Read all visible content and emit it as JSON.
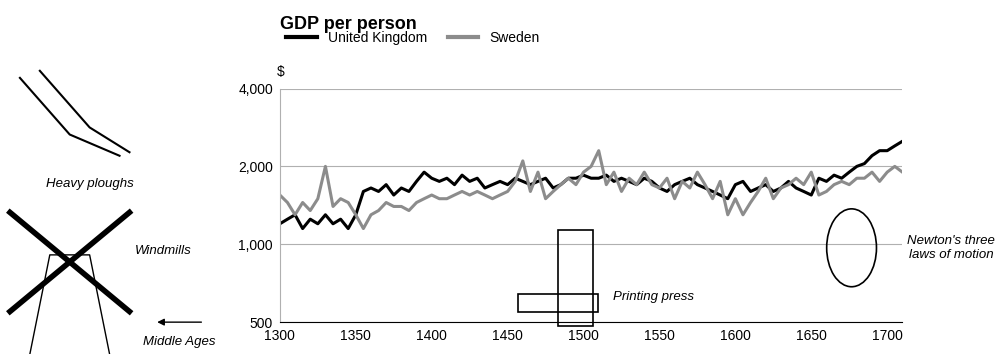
{
  "chart_data": {
    "type": "line",
    "title": "GDP per person",
    "y_label": "$",
    "x": [
      1300,
      1305,
      1310,
      1315,
      1320,
      1325,
      1330,
      1335,
      1340,
      1345,
      1350,
      1355,
      1360,
      1365,
      1370,
      1375,
      1380,
      1385,
      1390,
      1395,
      1400,
      1405,
      1410,
      1415,
      1420,
      1425,
      1430,
      1435,
      1440,
      1445,
      1450,
      1455,
      1460,
      1465,
      1470,
      1475,
      1480,
      1485,
      1490,
      1495,
      1500,
      1505,
      1510,
      1515,
      1520,
      1525,
      1530,
      1535,
      1540,
      1545,
      1550,
      1555,
      1560,
      1565,
      1570,
      1575,
      1580,
      1585,
      1590,
      1595,
      1600,
      1605,
      1610,
      1615,
      1620,
      1625,
      1630,
      1635,
      1640,
      1645,
      1650,
      1655,
      1660,
      1665,
      1670,
      1675,
      1680,
      1685,
      1690,
      1695,
      1700,
      1705,
      1710
    ],
    "series": [
      {
        "name": "United Kingdom",
        "color": "#000000",
        "line_style": "solid",
        "values": [
          1200,
          1250,
          1300,
          1150,
          1250,
          1200,
          1300,
          1200,
          1250,
          1150,
          1300,
          1600,
          1650,
          1600,
          1700,
          1550,
          1650,
          1600,
          1750,
          1900,
          1800,
          1750,
          1800,
          1700,
          1850,
          1750,
          1800,
          1650,
          1700,
          1750,
          1700,
          1800,
          1750,
          1700,
          1750,
          1800,
          1650,
          1700,
          1800,
          1800,
          1850,
          1800,
          1800,
          1850,
          1750,
          1800,
          1750,
          1700,
          1800,
          1750,
          1650,
          1600,
          1700,
          1750,
          1800,
          1700,
          1650,
          1600,
          1550,
          1500,
          1700,
          1750,
          1600,
          1650,
          1700,
          1600,
          1650,
          1750,
          1650,
          1600,
          1550,
          1800,
          1750,
          1850,
          1800,
          1900,
          2000,
          2050,
          2200,
          2300,
          2300,
          2400,
          2500
        ]
      },
      {
        "name": "Sweden",
        "color": "#8c8c8c",
        "line_style": "solid",
        "values": [
          1550,
          1450,
          1300,
          1450,
          1350,
          1500,
          2000,
          1400,
          1500,
          1450,
          1300,
          1150,
          1300,
          1350,
          1450,
          1400,
          1400,
          1350,
          1450,
          1500,
          1550,
          1500,
          1500,
          1550,
          1600,
          1550,
          1600,
          1550,
          1500,
          1550,
          1600,
          1750,
          2100,
          1600,
          1900,
          1500,
          1600,
          1700,
          1800,
          1700,
          1900,
          2000,
          2300,
          1700,
          1900,
          1600,
          1800,
          1700,
          1900,
          1700,
          1650,
          1800,
          1500,
          1750,
          1650,
          1900,
          1700,
          1500,
          1750,
          1300,
          1500,
          1300,
          1450,
          1600,
          1800,
          1500,
          1650,
          1700,
          1800,
          1700,
          1900,
          1550,
          1600,
          1700,
          1750,
          1700,
          1800,
          1800,
          1900,
          1750,
          1900,
          2000,
          1900
        ]
      }
    ],
    "xlim": [
      1300,
      1710
    ],
    "xticks": [
      1300,
      1350,
      1400,
      1450,
      1500,
      1550,
      1600,
      1650,
      1700
    ],
    "ylim": [
      500,
      4000
    ],
    "yticks": [
      500,
      {
        "value": 1000,
        "label": "1,000"
      },
      {
        "value": 2000,
        "label": "2,000"
      },
      {
        "value": 4000,
        "label": "4,000"
      }
    ],
    "log": "y",
    "grid": true,
    "legend": "upper left",
    "annotations": [
      "Heavy ploughs",
      "Windmills",
      "Middle Ages",
      "Printing press",
      "Newton's three\nlaws of motion"
    ]
  }
}
